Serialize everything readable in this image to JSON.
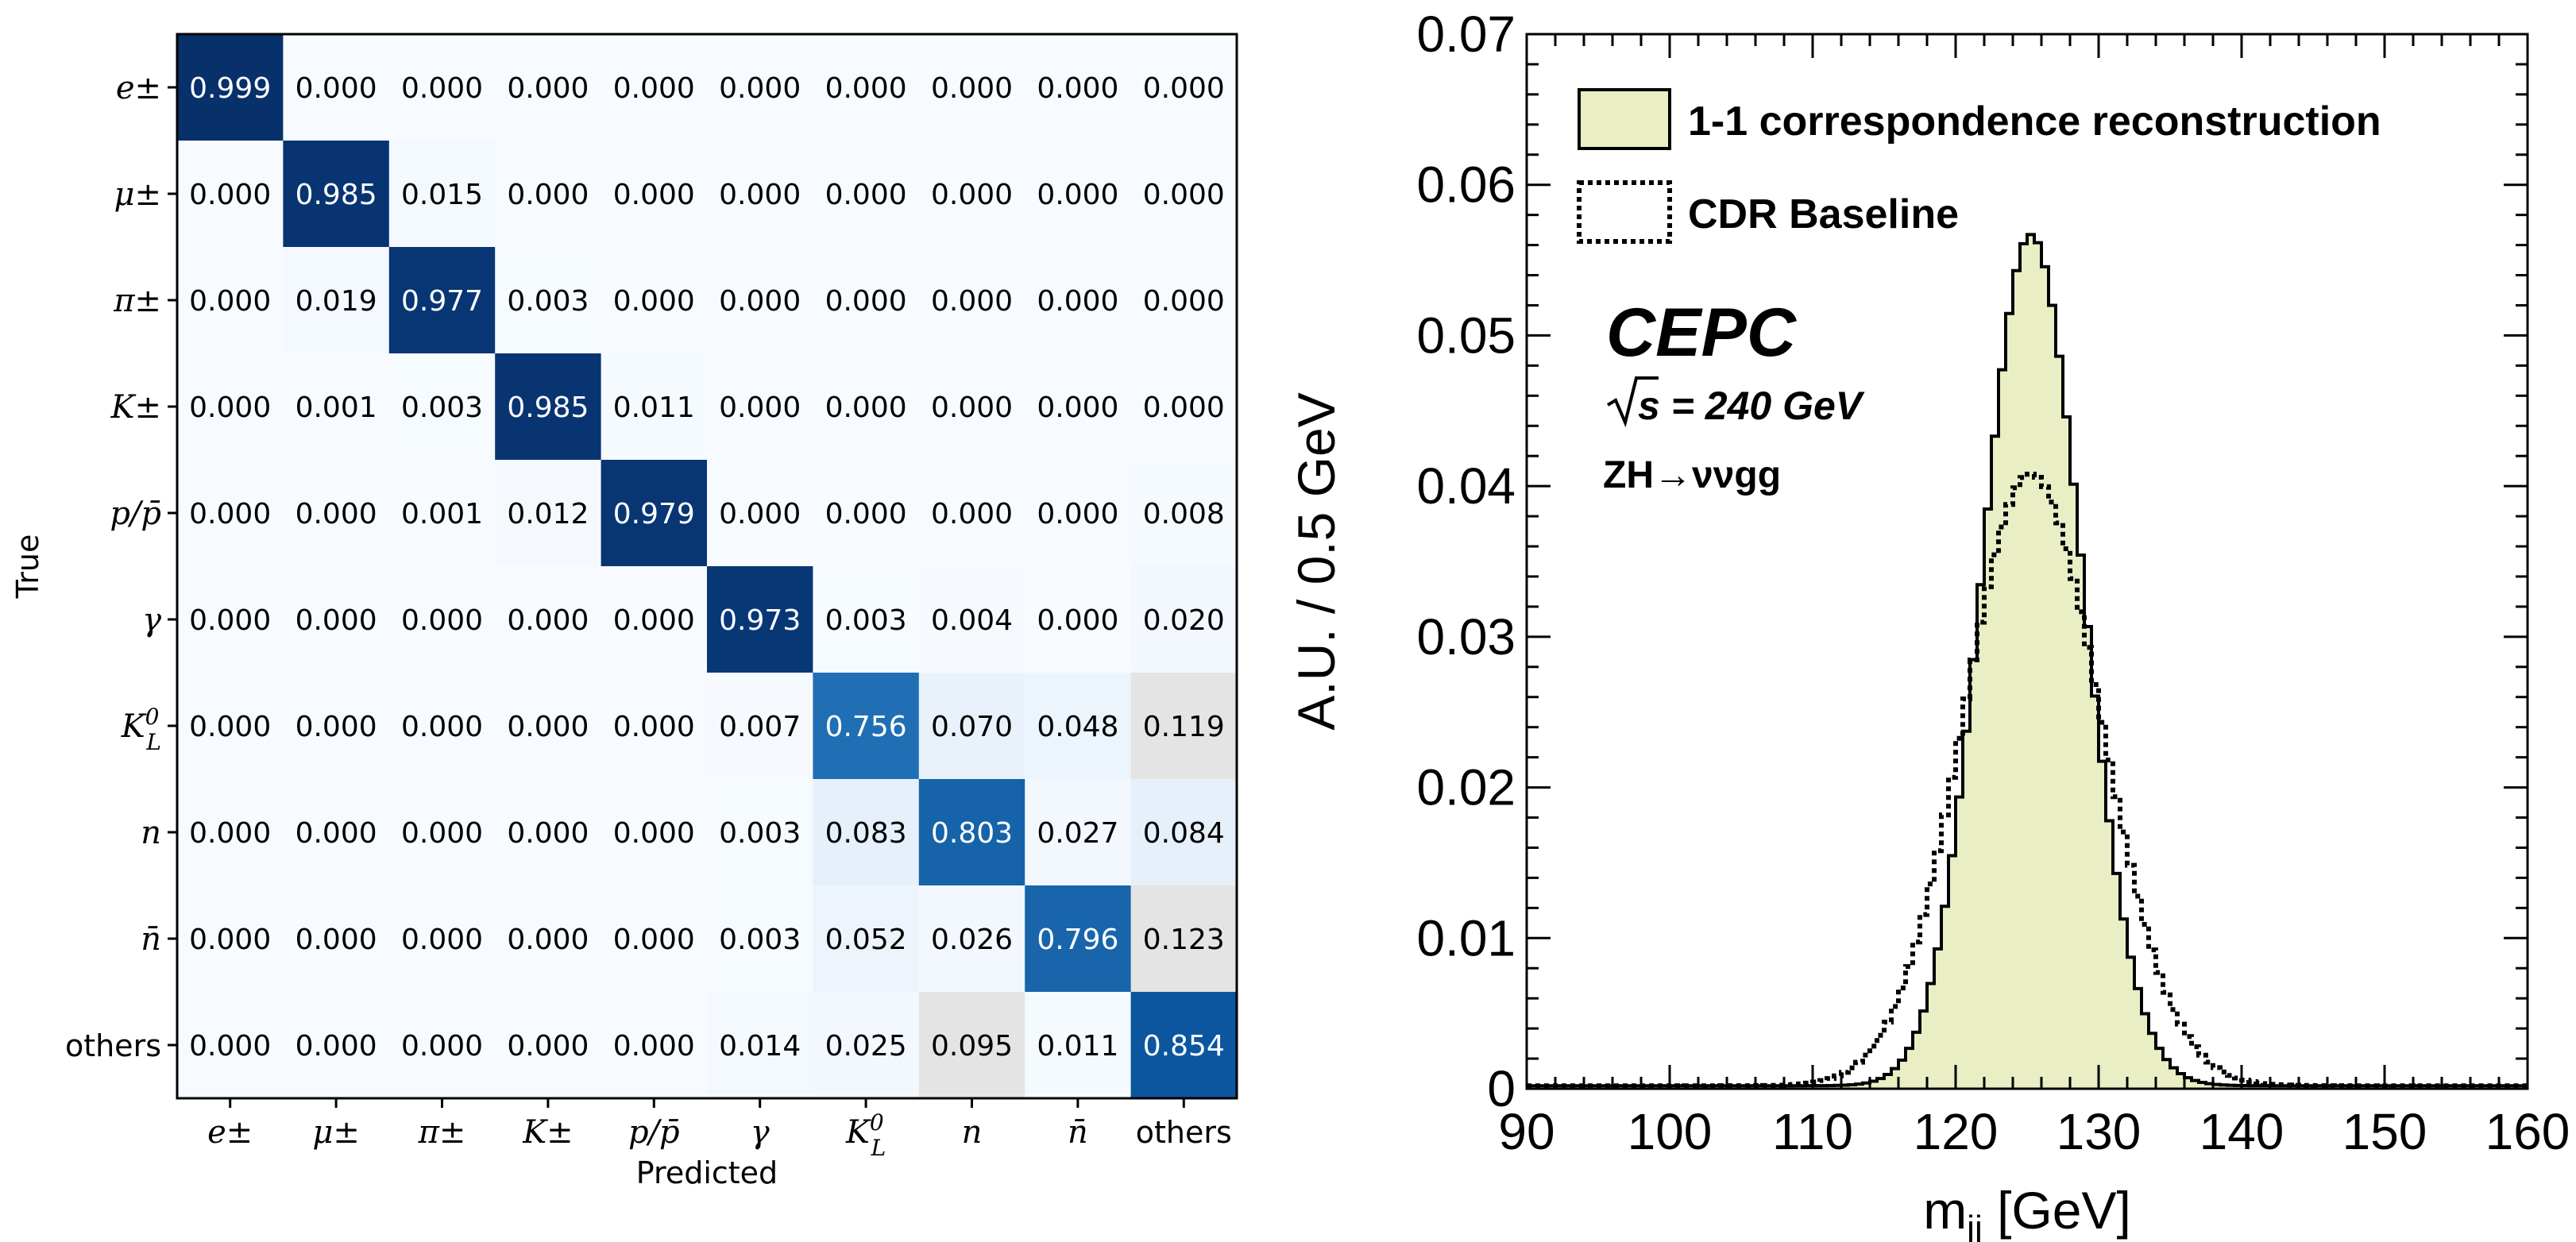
{
  "chart_data": [
    {
      "type": "heatmap",
      "title": "",
      "xlabel": "Predicted",
      "ylabel": "True",
      "x_categories": [
        "e±",
        "μ±",
        "π±",
        "K±",
        "p/p̄",
        "γ",
        "K_L^0",
        "n",
        "n̄",
        "others"
      ],
      "y_categories": [
        "e±",
        "μ±",
        "π±",
        "K±",
        "p/p̄",
        "γ",
        "K_L^0",
        "n",
        "n̄",
        "others"
      ],
      "values": [
        [
          "0.999",
          "0.000",
          "0.000",
          "0.000",
          "0.000",
          "0.000",
          "0.000",
          "0.000",
          "0.000",
          "0.000"
        ],
        [
          "0.000",
          "0.985",
          "0.015",
          "0.000",
          "0.000",
          "0.000",
          "0.000",
          "0.000",
          "0.000",
          "0.000"
        ],
        [
          "0.000",
          "0.019",
          "0.977",
          "0.003",
          "0.000",
          "0.000",
          "0.000",
          "0.000",
          "0.000",
          "0.000"
        ],
        [
          "0.000",
          "0.001",
          "0.003",
          "0.985",
          "0.011",
          "0.000",
          "0.000",
          "0.000",
          "0.000",
          "0.000"
        ],
        [
          "0.000",
          "0.000",
          "0.001",
          "0.012",
          "0.979",
          "0.000",
          "0.000",
          "0.000",
          "0.000",
          "0.008"
        ],
        [
          "0.000",
          "0.000",
          "0.000",
          "0.000",
          "0.000",
          "0.973",
          "0.003",
          "0.004",
          "0.000",
          "0.020"
        ],
        [
          "0.000",
          "0.000",
          "0.000",
          "0.000",
          "0.000",
          "0.007",
          "0.756",
          "0.070",
          "0.048",
          "0.119"
        ],
        [
          "0.000",
          "0.000",
          "0.000",
          "0.000",
          "0.000",
          "0.003",
          "0.083",
          "0.803",
          "0.027",
          "0.084"
        ],
        [
          "0.000",
          "0.000",
          "0.000",
          "0.000",
          "0.000",
          "0.003",
          "0.052",
          "0.026",
          "0.796",
          "0.123"
        ],
        [
          "0.000",
          "0.000",
          "0.000",
          "0.000",
          "0.000",
          "0.014",
          "0.025",
          "0.095",
          "0.011",
          "0.854"
        ]
      ],
      "colormap": "Blues",
      "grid": false
    },
    {
      "type": "area",
      "title": "",
      "xlabel": "m_jj [GeV]",
      "ylabel": "A.U. / 0.5 GeV",
      "xlim": [
        90,
        160
      ],
      "ylim": [
        0,
        0.07
      ],
      "x_ticks": [
        "90",
        "100",
        "110",
        "120",
        "130",
        "140",
        "150",
        "160"
      ],
      "y_ticks": [
        "0",
        "0.01",
        "0.02",
        "0.03",
        "0.04",
        "0.05",
        "0.06",
        "0.07"
      ],
      "legend_position": "top-left",
      "series": [
        {
          "name": "1-1 correspondence reconstruction",
          "style": "filled-step",
          "fill": "#e9eec5",
          "stroke": "#000000",
          "peak_x": 125.25,
          "peak_y": 0.0567,
          "sigma_left": 3.4,
          "sigma_right": 3.6,
          "baseline": 0.0002
        },
        {
          "name": "CDR Baseline",
          "style": "dotted-step",
          "stroke": "#000000",
          "peak_x": 125.25,
          "peak_y": 0.0408,
          "sigma_left": 4.7,
          "sigma_right": 4.9,
          "baseline": 0.0002
        }
      ],
      "annotations": {
        "experiment": "CEPC",
        "sqrt_s": "s = 240 GeV",
        "process": "ZH→ννgg"
      }
    }
  ]
}
